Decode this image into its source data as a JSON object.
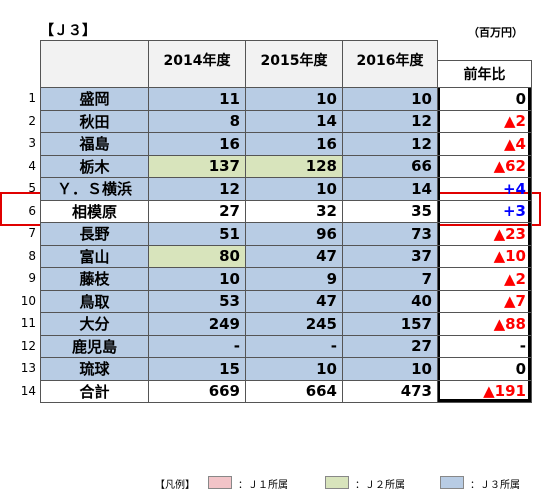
{
  "header": {
    "title": "【Ｊ３】",
    "unit": "（百万円）"
  },
  "table": {
    "columns": [
      "2014年度",
      "2015年度",
      "2016年度",
      "前年比"
    ],
    "rows": [
      {
        "no": "1",
        "name": "盛岡",
        "cells": [
          "11",
          "10",
          "10"
        ],
        "change": "0",
        "fills": [
          "#b8cce4",
          "#b8cce4",
          "#b8cce4",
          "#b8cce4"
        ],
        "change_color": "#000000"
      },
      {
        "no": "2",
        "name": "秋田",
        "cells": [
          "8",
          "14",
          "12"
        ],
        "change": "▲2",
        "fills": [
          "#b8cce4",
          "#b8cce4",
          "#b8cce4",
          "#b8cce4"
        ],
        "change_color": "#ff0000"
      },
      {
        "no": "3",
        "name": "福島",
        "cells": [
          "16",
          "16",
          "12"
        ],
        "change": "▲4",
        "fills": [
          "#b8cce4",
          "#b8cce4",
          "#b8cce4",
          "#b8cce4"
        ],
        "change_color": "#ff0000"
      },
      {
        "no": "4",
        "name": "栃木",
        "cells": [
          "137",
          "128",
          "66"
        ],
        "change": "▲62",
        "fills": [
          "#b8cce4",
          "#d8e4bc",
          "#d8e4bc",
          "#b8cce4"
        ],
        "change_color": "#ff0000"
      },
      {
        "no": "5",
        "name": "Ｙ．Ｓ横浜",
        "cells": [
          "12",
          "10",
          "14"
        ],
        "change": "+4",
        "fills": [
          "#b8cce4",
          "#b8cce4",
          "#b8cce4",
          "#b8cce4"
        ],
        "change_color": "#0000ff"
      },
      {
        "no": "6",
        "name": "相模原",
        "cells": [
          "27",
          "32",
          "35"
        ],
        "change": "+3",
        "fills": [
          "#ffffff",
          "#ffffff",
          "#ffffff",
          "#ffffff"
        ],
        "change_color": "#0000ff"
      },
      {
        "no": "7",
        "name": "長野",
        "cells": [
          "51",
          "96",
          "73"
        ],
        "change": "▲23",
        "fills": [
          "#b8cce4",
          "#b8cce4",
          "#b8cce4",
          "#b8cce4"
        ],
        "change_color": "#ff0000"
      },
      {
        "no": "8",
        "name": "富山",
        "cells": [
          "80",
          "47",
          "37"
        ],
        "change": "▲10",
        "fills": [
          "#b8cce4",
          "#d8e4bc",
          "#b8cce4",
          "#b8cce4"
        ],
        "change_color": "#ff0000"
      },
      {
        "no": "9",
        "name": "藤枝",
        "cells": [
          "10",
          "9",
          "7"
        ],
        "change": "▲2",
        "fills": [
          "#b8cce4",
          "#b8cce4",
          "#b8cce4",
          "#b8cce4"
        ],
        "change_color": "#ff0000"
      },
      {
        "no": "10",
        "name": "鳥取",
        "cells": [
          "53",
          "47",
          "40"
        ],
        "change": "▲7",
        "fills": [
          "#b8cce4",
          "#b8cce4",
          "#b8cce4",
          "#b8cce4"
        ],
        "change_color": "#ff0000"
      },
      {
        "no": "11",
        "name": "大分",
        "cells": [
          "249",
          "245",
          "157"
        ],
        "change": "▲88",
        "fills": [
          "#b8cce4",
          "#b8cce4",
          "#b8cce4",
          "#b8cce4"
        ],
        "change_color": "#ff0000"
      },
      {
        "no": "12",
        "name": "鹿児島",
        "cells": [
          "-",
          "-",
          "27"
        ],
        "change": "-",
        "fills": [
          "#b8cce4",
          "#b8cce4",
          "#b8cce4",
          "#b8cce4"
        ],
        "change_color": "#000000"
      },
      {
        "no": "13",
        "name": "琉球",
        "cells": [
          "15",
          "10",
          "10"
        ],
        "change": "0",
        "fills": [
          "#b8cce4",
          "#b8cce4",
          "#b8cce4",
          "#b8cce4"
        ],
        "change_color": "#000000"
      },
      {
        "no": "14",
        "name": "合計",
        "cells": [
          "669",
          "664",
          "473"
        ],
        "change": "▲191",
        "fills": [
          "#ffffff",
          "#ffffff",
          "#ffffff",
          "#ffffff"
        ],
        "change_color": "#ff0000"
      }
    ]
  },
  "legend": {
    "title": "【凡例】",
    "items": [
      {
        "label": "：Ｊ１所属",
        "color": "#f2c4c8"
      },
      {
        "label": "：Ｊ２所属",
        "color": "#d8e4bc"
      },
      {
        "label": "：Ｊ３所属",
        "color": "#b8cce4"
      }
    ]
  }
}
